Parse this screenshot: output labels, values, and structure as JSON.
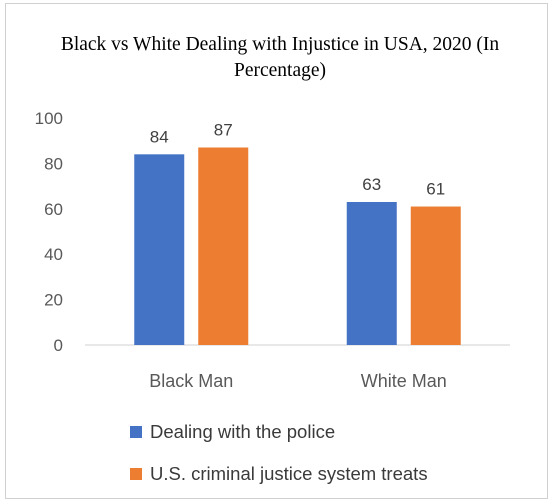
{
  "chart_data": {
    "type": "bar",
    "title": "Black vs White Dealing with Injustice in USA, 2020 (In Percentage)",
    "categories": [
      "Black Man",
      "White Man"
    ],
    "series": [
      {
        "name": "Dealing with the police",
        "values": [
          84,
          63
        ],
        "color": "#4472C4"
      },
      {
        "name": "U.S. criminal justice system treats",
        "values": [
          87,
          61
        ],
        "color": "#ED7D31"
      }
    ],
    "ylim": [
      0,
      100
    ],
    "yticks": [
      "0",
      "20",
      "40",
      "60",
      "80",
      "100"
    ],
    "ytick_values": [
      0,
      20,
      40,
      60,
      80,
      100
    ],
    "grid": false,
    "data_labels": true,
    "legend_position": "bottom"
  }
}
